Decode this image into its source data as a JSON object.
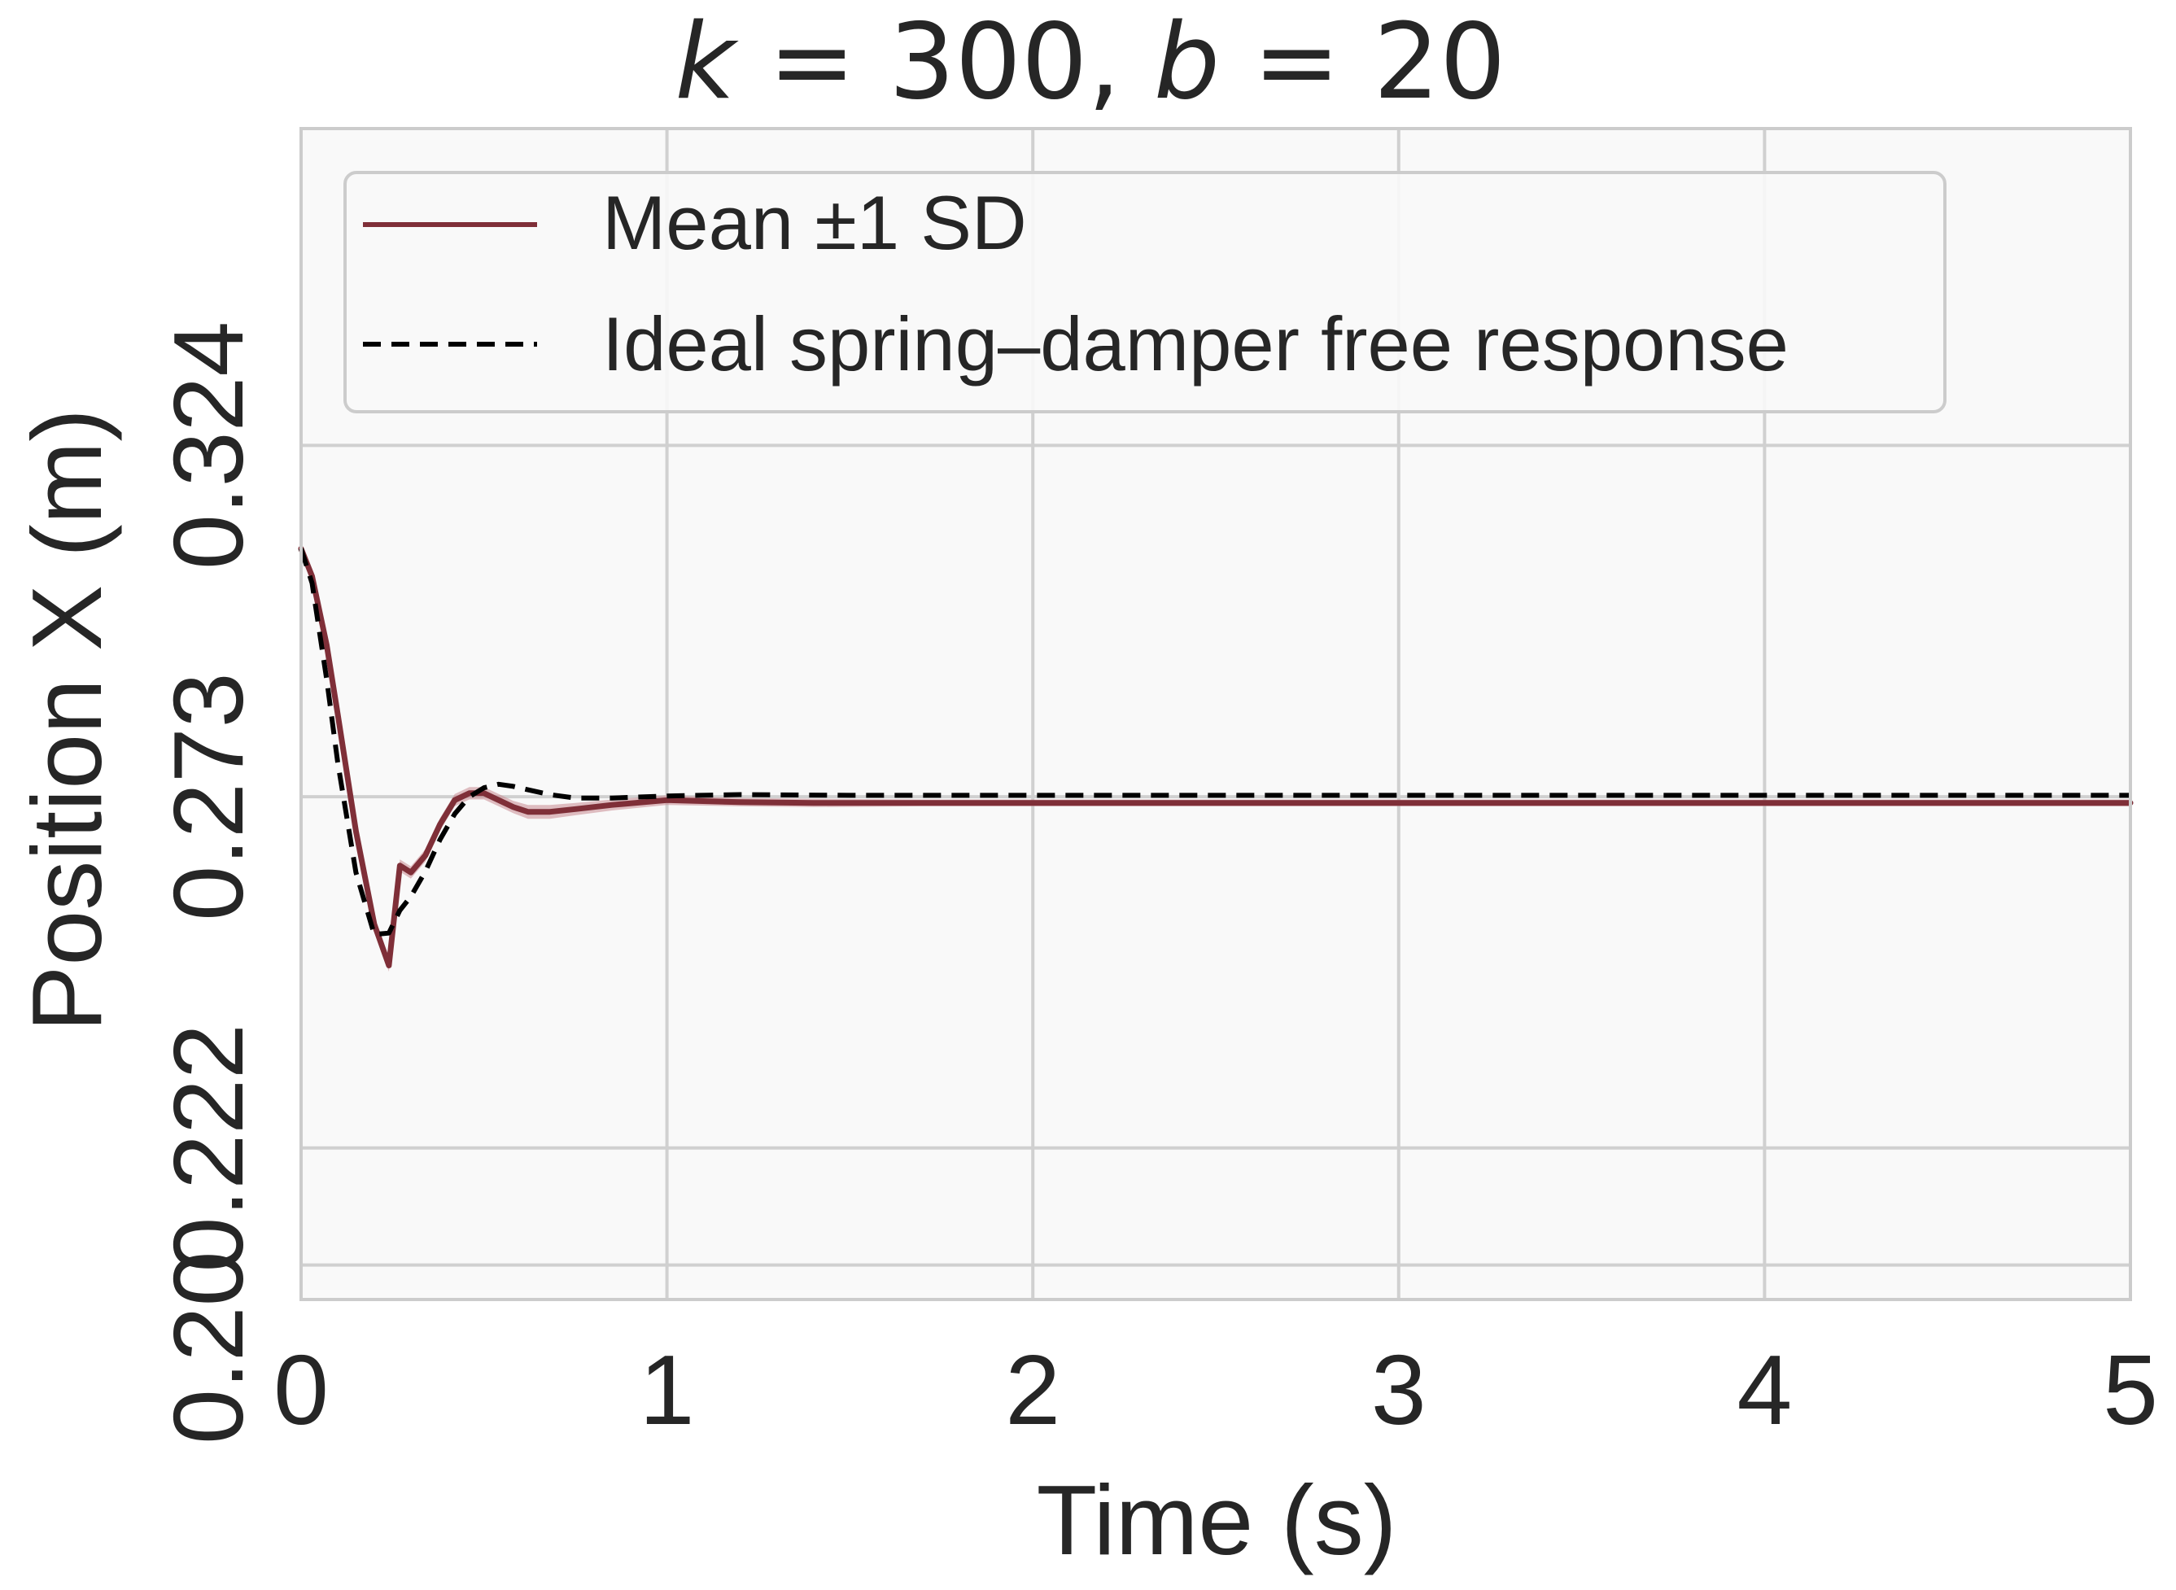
{
  "chart_data": {
    "type": "line",
    "title_parts": [
      {
        "text": "k",
        "italic": true
      },
      {
        "text": " = 300, ",
        "italic": false
      },
      {
        "text": "b",
        "italic": true
      },
      {
        "text": " = 20",
        "italic": false
      }
    ],
    "xlabel": "Time (s)",
    "ylabel": "Position X (m)",
    "xlim": [
      0,
      5
    ],
    "ylim": [
      0.2,
      0.37
    ],
    "xticks": [
      0,
      1,
      2,
      3,
      4,
      5
    ],
    "xtick_labels": [
      "0",
      "1",
      "2",
      "3",
      "4",
      "5"
    ],
    "yticks": [
      0.205,
      0.222,
      0.273,
      0.324
    ],
    "ytick_labels": [
      "0.20",
      "0.222",
      "0.273",
      "0.324"
    ],
    "grid": true,
    "legend_position": "top-left",
    "series": [
      {
        "name": "Mean ±1 SD",
        "color": "#7f2f38",
        "band_color": "#c98a92",
        "style": "solid",
        "x": [
          0,
          0.03,
          0.07,
          0.1,
          0.15,
          0.2,
          0.24,
          0.27,
          0.3,
          0.34,
          0.38,
          0.42,
          0.46,
          0.5,
          0.54,
          0.58,
          0.62,
          0.68,
          0.75,
          0.85,
          1.0,
          1.2,
          1.4,
          1.7,
          2.0,
          3.0,
          4.0,
          5.0
        ],
        "y": [
          0.309,
          0.305,
          0.295,
          0.285,
          0.268,
          0.2545,
          0.2485,
          0.263,
          0.262,
          0.2645,
          0.269,
          0.2725,
          0.2735,
          0.2735,
          0.2725,
          0.2715,
          0.2708,
          0.2708,
          0.2712,
          0.2718,
          0.2725,
          0.2722,
          0.2721,
          0.2721,
          0.2721,
          0.2721,
          0.2721,
          0.2721
        ],
        "sd": [
          0.0005,
          0.0005,
          0.0006,
          0.0007,
          0.0008,
          0.0009,
          0.0009,
          0.0009,
          0.0009,
          0.0009,
          0.0009,
          0.0009,
          0.0009,
          0.0009,
          0.0009,
          0.0009,
          0.001,
          0.001,
          0.0009,
          0.0008,
          0.0007,
          0.0006,
          0.0006,
          0.0005,
          0.0005,
          0.0005,
          0.0005,
          0.0005
        ]
      },
      {
        "name": "Ideal spring–damper free response",
        "color": "#000000",
        "style": "dashed",
        "x": [
          0,
          0.03,
          0.07,
          0.1,
          0.15,
          0.2,
          0.24,
          0.27,
          0.3,
          0.34,
          0.38,
          0.42,
          0.46,
          0.5,
          0.54,
          0.58,
          0.62,
          0.68,
          0.75,
          0.85,
          1.0,
          1.2,
          1.5,
          2.0,
          3.0,
          4.0,
          5.0
        ],
        "y": [
          0.309,
          0.304,
          0.29,
          0.278,
          0.262,
          0.253,
          0.2532,
          0.2565,
          0.2585,
          0.2622,
          0.2668,
          0.2705,
          0.273,
          0.2743,
          0.2748,
          0.2745,
          0.274,
          0.2733,
          0.2728,
          0.2728,
          0.2731,
          0.2733,
          0.2732,
          0.2732,
          0.2732,
          0.2732,
          0.2732
        ]
      }
    ]
  }
}
